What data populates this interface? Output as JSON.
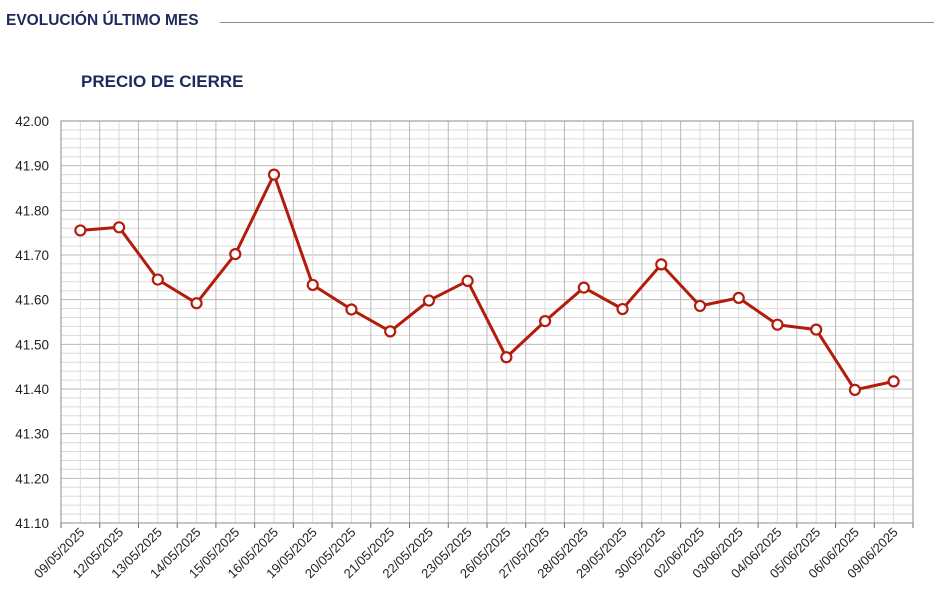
{
  "header": {
    "title": "EVOLUCIÓN ÚLTIMO MES"
  },
  "chart_data": {
    "type": "line",
    "title": "PRECIO DE CIERRE",
    "xlabel": "",
    "ylabel": "",
    "ylim": [
      41.1,
      42.0
    ],
    "grid": true,
    "y_ticks": [
      "42.00",
      "41.90",
      "41.80",
      "41.70",
      "41.60",
      "41.50",
      "41.40",
      "41.30",
      "41.20",
      "41.10"
    ],
    "categories": [
      "09/05/2025",
      "12/05/2025",
      "13/05/2025",
      "14/05/2025",
      "15/05/2025",
      "16/05/2025",
      "19/05/2025",
      "20/05/2025",
      "21/05/2025",
      "22/05/2025",
      "23/05/2025",
      "26/05/2025",
      "27/05/2025",
      "28/05/2025",
      "29/05/2025",
      "30/05/2025",
      "02/06/2025",
      "03/06/2025",
      "04/06/2025",
      "05/06/2025",
      "06/06/2025",
      "09/06/2025"
    ],
    "series": [
      {
        "values": [
          41.755,
          41.762,
          41.645,
          41.592,
          41.702,
          41.88,
          41.633,
          41.578,
          41.529,
          41.598,
          41.642,
          41.471,
          41.552,
          41.627,
          41.579,
          41.679,
          41.586,
          41.604,
          41.544,
          41.533,
          41.398,
          41.417
        ],
        "color": "#b31b0b"
      }
    ]
  }
}
